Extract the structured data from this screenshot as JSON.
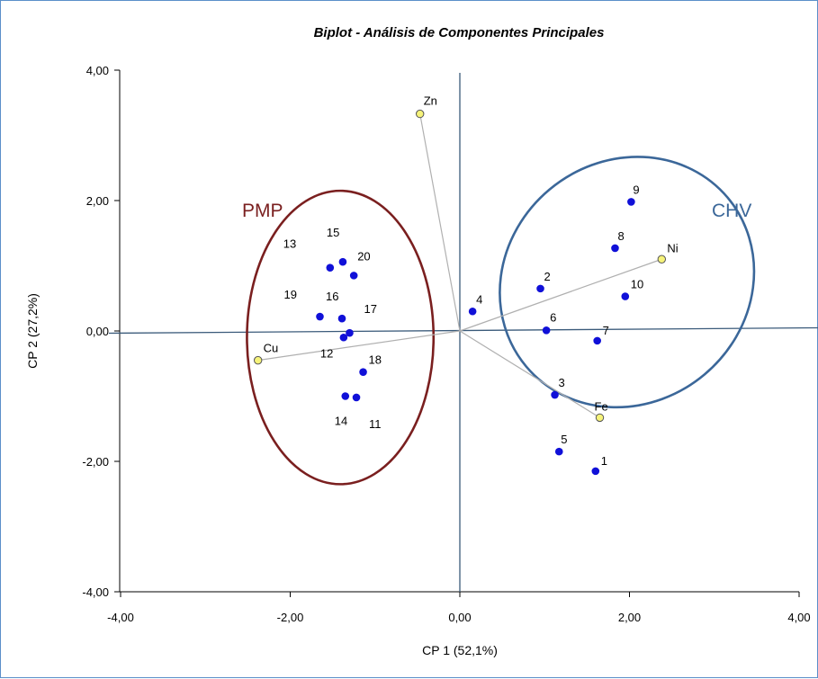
{
  "chart_data": {
    "type": "scatter",
    "title": "Biplot - Análisis de Componentes Principales",
    "xlabel": "CP 1 (52,1%)",
    "ylabel": "CP 2 (27,2%)",
    "xlim": [
      -4,
      4
    ],
    "ylim": [
      -4,
      4
    ],
    "x_ticks": [
      "-4,00",
      "-2,00",
      "0,00",
      "2,00",
      "4,00"
    ],
    "y_ticks": [
      "-4,00",
      "-2,00",
      "0,00",
      "2,00",
      "4,00"
    ],
    "grid": false,
    "colors": {
      "observation": "#1010d8",
      "variable_fill": "#f6f37a",
      "variable_stroke": "#555555",
      "vector": "#b0b0b0",
      "axis": "#3a5a7a",
      "pmp": "#7a1f1f",
      "chv": "#3b6799"
    },
    "observations": [
      {
        "label": "1",
        "x": 1.6,
        "y": -2.15
      },
      {
        "label": "2",
        "x": 0.95,
        "y": 0.65
      },
      {
        "label": "3",
        "x": 1.12,
        "y": -0.98
      },
      {
        "label": "4",
        "x": 0.15,
        "y": 0.3
      },
      {
        "label": "5",
        "x": 1.17,
        "y": -1.85
      },
      {
        "label": "6",
        "x": 1.02,
        "y": 0.01
      },
      {
        "label": "7",
        "x": 1.62,
        "y": -0.15
      },
      {
        "label": "8",
        "x": 1.83,
        "y": 1.27
      },
      {
        "label": "9",
        "x": 2.02,
        "y": 1.98
      },
      {
        "label": "10",
        "x": 1.95,
        "y": 0.53
      },
      {
        "label": "11",
        "x": -1.22,
        "y": -1.02
      },
      {
        "label": "12",
        "x": -1.37,
        "y": -0.1
      },
      {
        "label": "13",
        "x": -1.53,
        "y": 0.97
      },
      {
        "label": "14",
        "x": -1.35,
        "y": -1.0
      },
      {
        "label": "15",
        "x": -1.38,
        "y": 1.06
      },
      {
        "label": "16",
        "x": -1.39,
        "y": 0.19
      },
      {
        "label": "17",
        "x": -1.3,
        "y": -0.03
      },
      {
        "label": "18",
        "x": -1.14,
        "y": -0.63
      },
      {
        "label": "19",
        "x": -1.65,
        "y": 0.22
      },
      {
        "label": "20",
        "x": -1.25,
        "y": 0.85
      }
    ],
    "variables": [
      {
        "label": "Zn",
        "x": -0.47,
        "y": 3.33
      },
      {
        "label": "Ni",
        "x": 2.38,
        "y": 1.1
      },
      {
        "label": "Cu",
        "x": -2.38,
        "y": -0.45
      },
      {
        "label": "Fe",
        "x": 1.65,
        "y": -1.33
      }
    ],
    "groups": [
      {
        "label": "PMP",
        "cx": -1.41,
        "cy": -0.1,
        "rx": 1.1,
        "ry": 2.25
      },
      {
        "label": "CHV",
        "cx": 1.97,
        "cy": 0.75,
        "rx": 1.55,
        "ry": 1.85,
        "rotation_deg": -40
      }
    ]
  }
}
